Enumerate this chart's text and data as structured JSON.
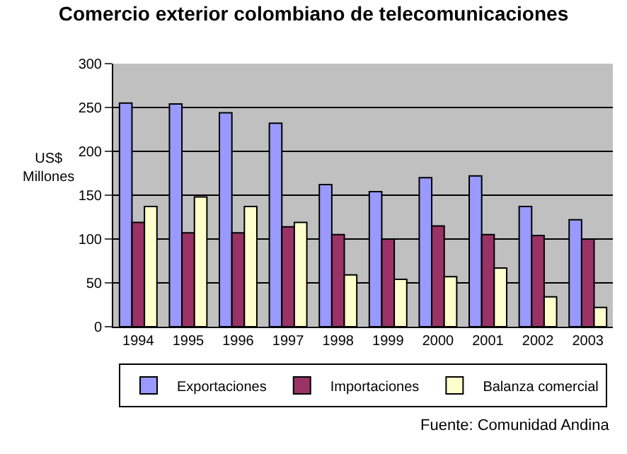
{
  "chart_data": {
    "type": "bar",
    "title": "Comercio exterior colombiano de telecomunicaciones",
    "ylabel": "US$\nMillones",
    "categories": [
      "1994",
      "1995",
      "1996",
      "1997",
      "1998",
      "1999",
      "2000",
      "2001",
      "2002",
      "2003"
    ],
    "series": [
      {
        "name": "Exportaciones",
        "color": "#9999ff",
        "values": [
          255,
          254,
          244,
          232,
          162,
          154,
          170,
          172,
          137,
          122
        ]
      },
      {
        "name": "Importaciones",
        "color": "#993366",
        "values": [
          119,
          107,
          107,
          114,
          105,
          100,
          115,
          105,
          104,
          100
        ]
      },
      {
        "name": "Balanza comercial",
        "color": "#ffffcc",
        "values": [
          137,
          148,
          137,
          119,
          59,
          54,
          57,
          67,
          34,
          22
        ]
      }
    ],
    "ylim": [
      0,
      300
    ],
    "yticks": [
      0,
      50,
      100,
      150,
      200,
      250,
      300
    ],
    "grid": "y",
    "legend": "bottom",
    "annotations": [
      "Fuente: Comunidad Andina"
    ]
  }
}
